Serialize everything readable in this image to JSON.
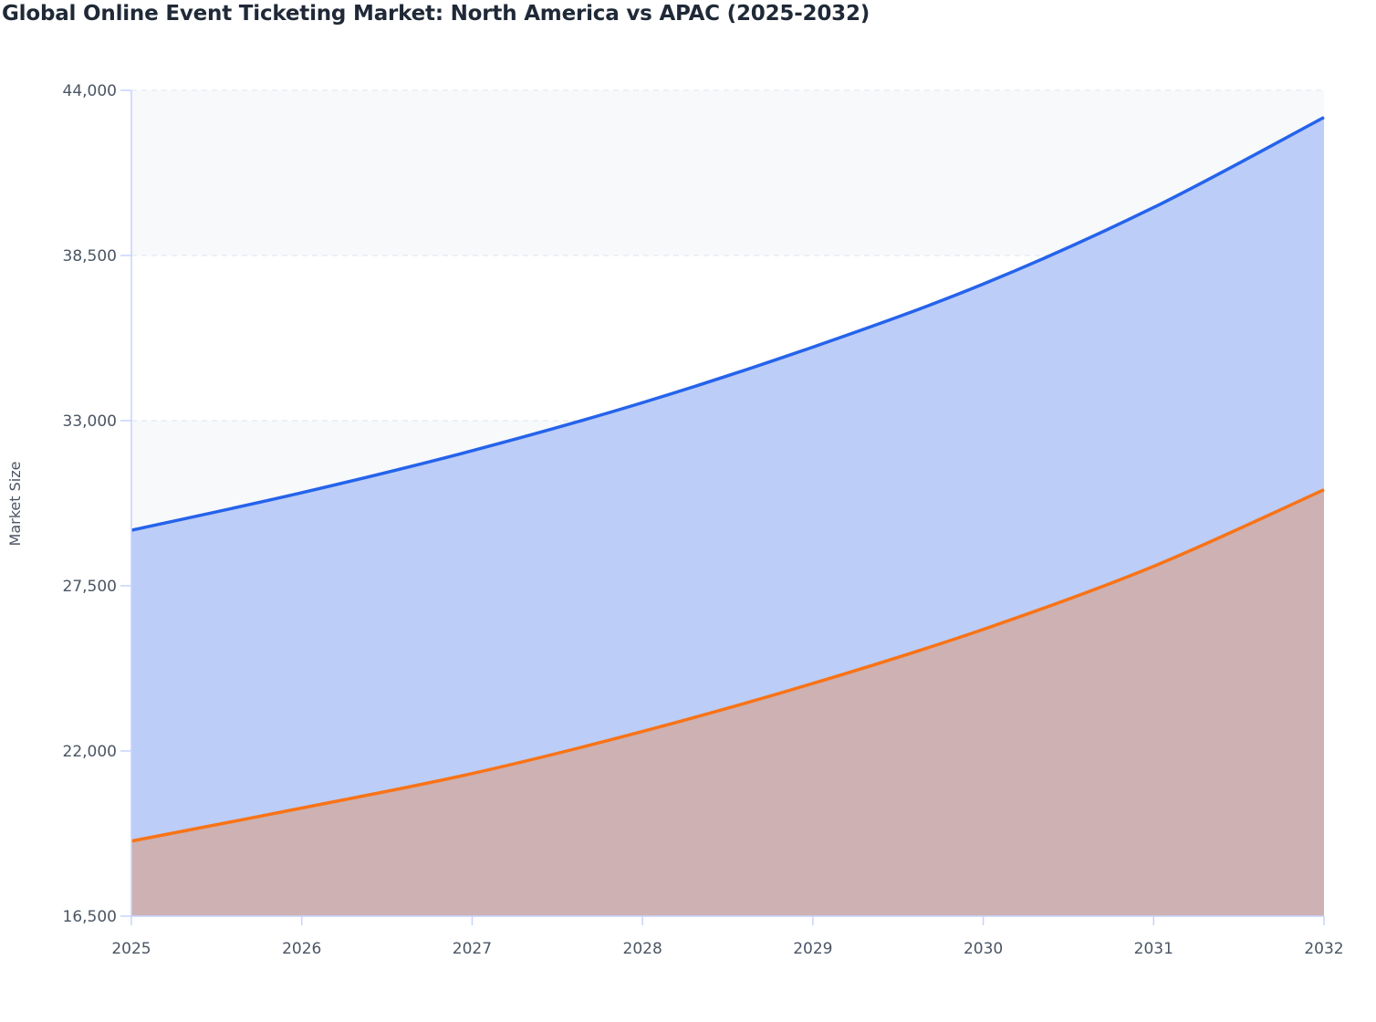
{
  "chart_data": {
    "type": "area",
    "title": "Global Online Event Ticketing Market: North America vs APAC (2025-2032)",
    "xlabel": "",
    "ylabel": "Market Size",
    "categories": [
      "2025",
      "2026",
      "2027",
      "2028",
      "2029",
      "2030",
      "2031",
      "2032"
    ],
    "ylim": [
      16500,
      44000
    ],
    "yticks": [
      16500,
      22000,
      27500,
      33000,
      38500,
      44000
    ],
    "ytick_labels": [
      "16,500",
      "22,000",
      "27,500",
      "33,000",
      "38,500",
      "44,000"
    ],
    "grid": true,
    "legend": "none",
    "series": [
      {
        "values": [
          29350,
          30600,
          32000,
          33600,
          35450,
          37550,
          40100,
          43100
        ],
        "color": "#2563eb",
        "fill": "#bccdf7"
      },
      {
        "values": [
          19000,
          20100,
          21250,
          22650,
          24250,
          26050,
          28150,
          30700
        ],
        "color": "#f97316",
        "fill": "#cdb1b3"
      }
    ]
  }
}
